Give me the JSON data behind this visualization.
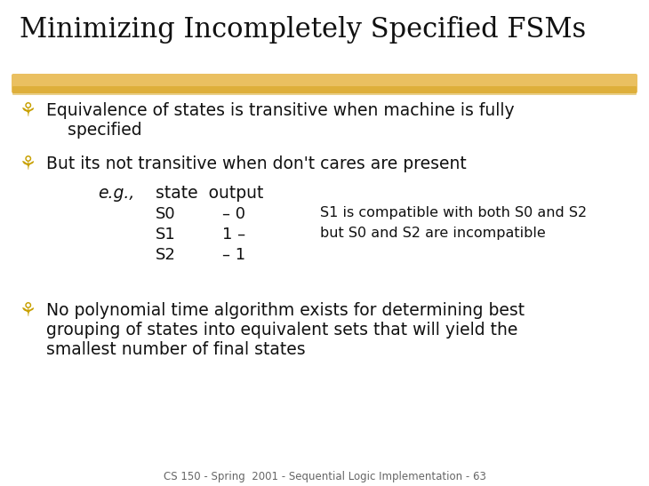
{
  "title": "Minimizing Incompletely Specified FSMs",
  "title_color": "#111111",
  "title_fontsize": 22,
  "background_color": "#ffffff",
  "highlight_color": "#E8B84B",
  "bullet_color": "#C8A000",
  "bullet_char": "⚘",
  "body_color": "#111111",
  "body_fontsize": 13.5,
  "small_fontsize": 11.5,
  "footer_text": "CS 150 - Spring  2001 - Sequential Logic Implementation - 63",
  "footer_fontsize": 8.5,
  "line1": "Equivalence of states is transitive when machine is fully",
  "line1b": "    specified",
  "line2": "But its not transitive when don't cares are present",
  "eg_line": "e.g.,    state  output",
  "row1_state": "S0",
  "row1_out": "- 0",
  "row1_note": "S1 is compatible with both S0 and S2",
  "row2_state": "S1",
  "row2_out": "1 -",
  "row2_note": "but S0 and S2 are incompatible",
  "row3_state": "S2",
  "row3_out": "- 1",
  "bullet3_line1": "No polynomial time algorithm exists for determining best",
  "bullet3_line2": "grouping of states into equivalent sets that will yield the",
  "bullet3_line3": "smallest number of final states"
}
